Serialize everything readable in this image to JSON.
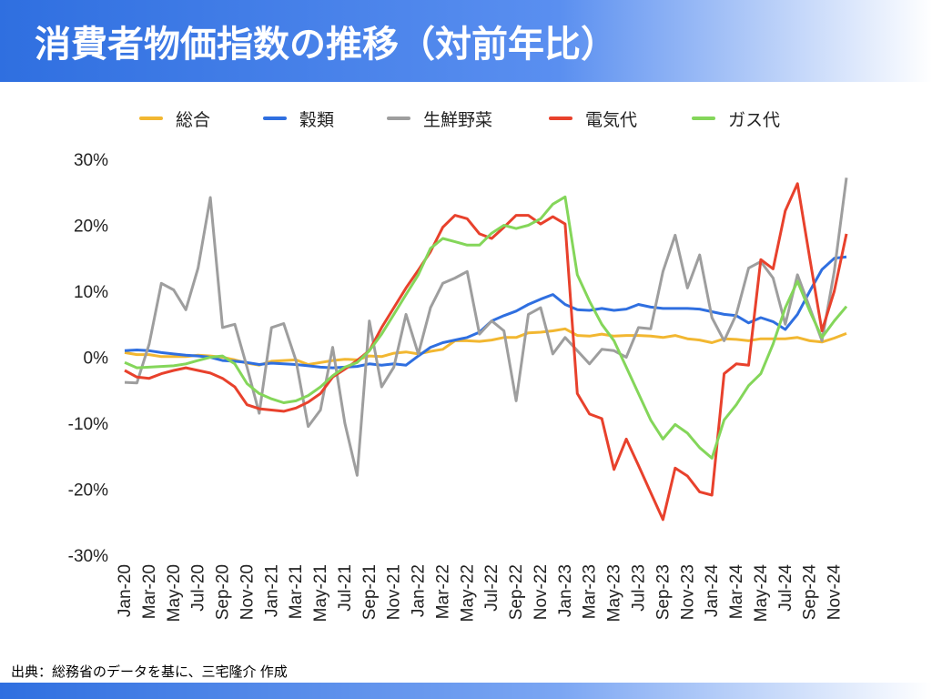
{
  "chart_data": {
    "type": "line",
    "title": "消費者物価指数の推移（対前年比）",
    "source": "出典：総務省のデータを基に、三宅隆介 作成",
    "categories": [
      "Jan-20",
      null,
      "Mar-20",
      null,
      "May-20",
      null,
      "Jul-20",
      null,
      "Sep-20",
      null,
      "Nov-20",
      null,
      "Jan-21",
      null,
      "Mar-21",
      null,
      "May-21",
      null,
      "Jul-21",
      null,
      "Sep-21",
      null,
      "Nov-21",
      null,
      "Jan-22",
      null,
      "Mar-22",
      null,
      "May-22",
      null,
      "Jul-22",
      null,
      "Sep-22",
      null,
      "Nov-22",
      null,
      "Jan-23",
      null,
      "Mar-23",
      null,
      "May-23",
      null,
      "Jul-23",
      null,
      "Sep-23",
      null,
      "Nov-23",
      null,
      "Jan-24",
      null,
      "Mar-24",
      null,
      "May-24",
      null,
      "Jul-24",
      null,
      "Sep-24",
      null,
      "Nov-24",
      null
    ],
    "ylim": [
      -30,
      30
    ],
    "yticks": [
      {
        "value": -30,
        "label": "-30%"
      },
      {
        "value": -20,
        "label": "-20%"
      },
      {
        "value": -10,
        "label": "-10%"
      },
      {
        "value": 0,
        "label": "0%"
      },
      {
        "value": 10,
        "label": "10%"
      },
      {
        "value": 20,
        "label": "20%"
      },
      {
        "value": 30,
        "label": "30%"
      }
    ],
    "grid": false,
    "legend": "top",
    "series": [
      {
        "name": "総合",
        "color": "#f2b731",
        "values": [
          0.7,
          0.4,
          0.4,
          0.1,
          0.1,
          0.1,
          0.3,
          0.2,
          0,
          -0.4,
          -0.9,
          -1.2,
          -0.6,
          -0.5,
          -0.4,
          -1.1,
          -0.8,
          -0.5,
          -0.3,
          -0.4,
          0.2,
          0.1,
          0.6,
          0.8,
          0.5,
          0.9,
          1.2,
          2.5,
          2.5,
          2.4,
          2.6,
          3.0,
          3.0,
          3.7,
          3.8,
          4.0,
          4.3,
          3.3,
          3.2,
          3.5,
          3.2,
          3.3,
          3.3,
          3.2,
          3.0,
          3.3,
          2.8,
          2.6,
          2.2,
          2.8,
          2.7,
          2.5,
          2.8,
          2.8,
          2.8,
          3.0,
          2.5,
          2.3,
          2.9,
          3.6
        ]
      },
      {
        "name": "穀類",
        "color": "#2f6fe0",
        "values": [
          1.0,
          1.1,
          1.0,
          0.7,
          0.5,
          0.3,
          0.2,
          0.0,
          -0.5,
          -0.6,
          -0.8,
          -1.1,
          -0.9,
          -1.0,
          -1.1,
          -1.3,
          -1.5,
          -1.6,
          -1.5,
          -1.4,
          -1.0,
          -1.2,
          -1.0,
          -1.2,
          0.2,
          1.5,
          2.2,
          2.6,
          3.0,
          3.8,
          5.5,
          6.3,
          7.0,
          8.0,
          8.8,
          9.5,
          8.0,
          7.2,
          7.1,
          7.4,
          7.1,
          7.3,
          8.0,
          7.6,
          7.4,
          7.4,
          7.4,
          7.3,
          6.9,
          6.5,
          6.3,
          5.2,
          6.0,
          5.4,
          4.2,
          6.5,
          10.0,
          13.3,
          15.0,
          15.2
        ]
      },
      {
        "name": "生鮮野菜",
        "color": "#9e9e9e",
        "values": [
          -3.8,
          -3.9,
          2.0,
          11.2,
          10.2,
          7.2,
          13.5,
          24.2,
          4.5,
          5.0,
          -1.5,
          -8.5,
          4.5,
          5.1,
          -0.5,
          -10.5,
          -8.0,
          1.5,
          -10.0,
          -17.9,
          5.5,
          -4.5,
          -1.5,
          6.5,
          0.5,
          7.5,
          11.2,
          12.0,
          13.0,
          3.5,
          5.5,
          4.0,
          -6.6,
          6.5,
          7.5,
          0.5,
          3.0,
          1.0,
          -1.0,
          1.2,
          1.0,
          0.0,
          4.5,
          4.3,
          13.0,
          18.5,
          10.5,
          15.5,
          6.0,
          2.5,
          6.5,
          13.5,
          14.5,
          12.0,
          5.0,
          12.5,
          7.5,
          2.5,
          13.0,
          27.2
        ]
      },
      {
        "name": "電気代",
        "color": "#e8412c",
        "values": [
          -2.0,
          -3.0,
          -3.2,
          -2.5,
          -2.0,
          -1.6,
          -2.0,
          -2.4,
          -3.2,
          -4.5,
          -7.2,
          -7.8,
          -8.0,
          -8.2,
          -7.7,
          -6.8,
          -5.5,
          -3.0,
          -1.8,
          -0.5,
          1.0,
          4.5,
          7.5,
          10.5,
          13.2,
          16.0,
          19.7,
          21.5,
          21.0,
          18.7,
          18.0,
          19.7,
          21.5,
          21.5,
          20.2,
          21.3,
          20.2,
          -5.5,
          -8.6,
          -9.3,
          -17.0,
          -12.4,
          -16.4,
          -20.5,
          -24.6,
          -16.8,
          -18.0,
          -20.4,
          -20.9,
          -2.5,
          -1.0,
          -1.2,
          14.8,
          13.4,
          22.2,
          26.3,
          15.0,
          4.0,
          10.0,
          18.7
        ]
      },
      {
        "name": "ガス代",
        "color": "#84d65a",
        "values": [
          -0.8,
          -1.6,
          -1.5,
          -1.4,
          -1.3,
          -1.0,
          -0.5,
          0.0,
          0.2,
          -1.0,
          -4.0,
          -5.5,
          -6.3,
          -6.9,
          -6.6,
          -5.8,
          -4.5,
          -2.8,
          -1.5,
          -0.8,
          1.0,
          3.5,
          6.5,
          9.5,
          12.5,
          16.5,
          18.0,
          17.5,
          17.0,
          17.0,
          18.8,
          20.0,
          19.5,
          20.0,
          21.0,
          23.2,
          24.3,
          12.5,
          8.5,
          5.0,
          2.5,
          -1.5,
          -5.5,
          -9.5,
          -12.4,
          -10.2,
          -11.5,
          -13.7,
          -15.3,
          -9.5,
          -7.2,
          -4.3,
          -2.5,
          2.0,
          7.5,
          11.5,
          7.0,
          3.0,
          5.5,
          7.7
        ]
      }
    ]
  }
}
